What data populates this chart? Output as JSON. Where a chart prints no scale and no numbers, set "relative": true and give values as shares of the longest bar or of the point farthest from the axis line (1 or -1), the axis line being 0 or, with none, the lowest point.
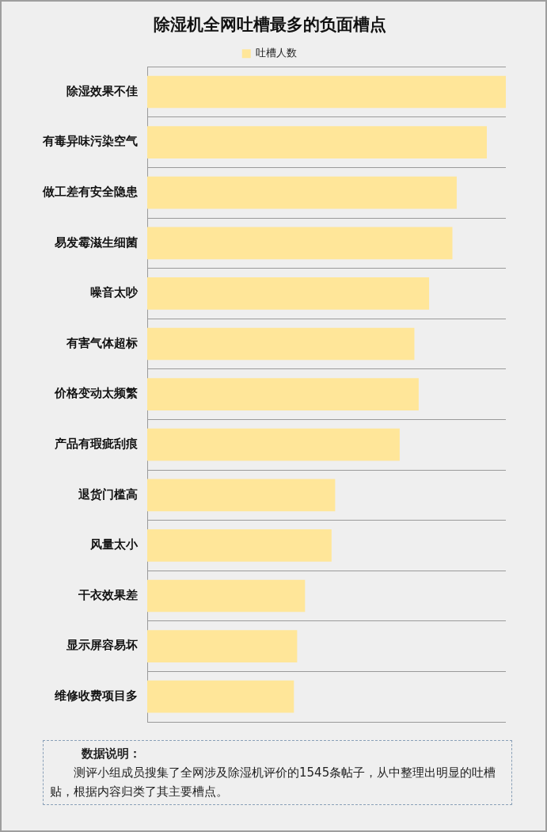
{
  "chart_data": {
    "type": "bar",
    "orientation": "horizontal",
    "relative": true,
    "title": "除湿机全网吐槽最多的负面槽点",
    "categories": [
      "除湿效果不佳",
      "有毒异味污染空气",
      "做工差有安全隐患",
      "易发霉滋生细菌",
      "噪音太吵",
      "有害气体超标",
      "价格变动太频繁",
      "产品有瑕疵刮痕",
      "退货门槛高",
      "风量太小",
      "干衣效果差",
      "显示屏容易坏",
      "维修收费项目多"
    ],
    "series": [
      {
        "name": "吐槽人数",
        "color": "#ffe699",
        "values": [
          1,
          0.947,
          0.863,
          0.851,
          0.786,
          0.745,
          0.757,
          0.704,
          0.524,
          0.514,
          0.44,
          0.418,
          0.409
        ]
      }
    ],
    "grid": "y",
    "legend": "top",
    "annotations": [
      "数据说明：",
      "测评小组成员搜集了全网涉及除湿机评价的1545条帖子，从中整理出明显的吐槽贴，根据内容归类了其主要槽点。"
    ]
  }
}
